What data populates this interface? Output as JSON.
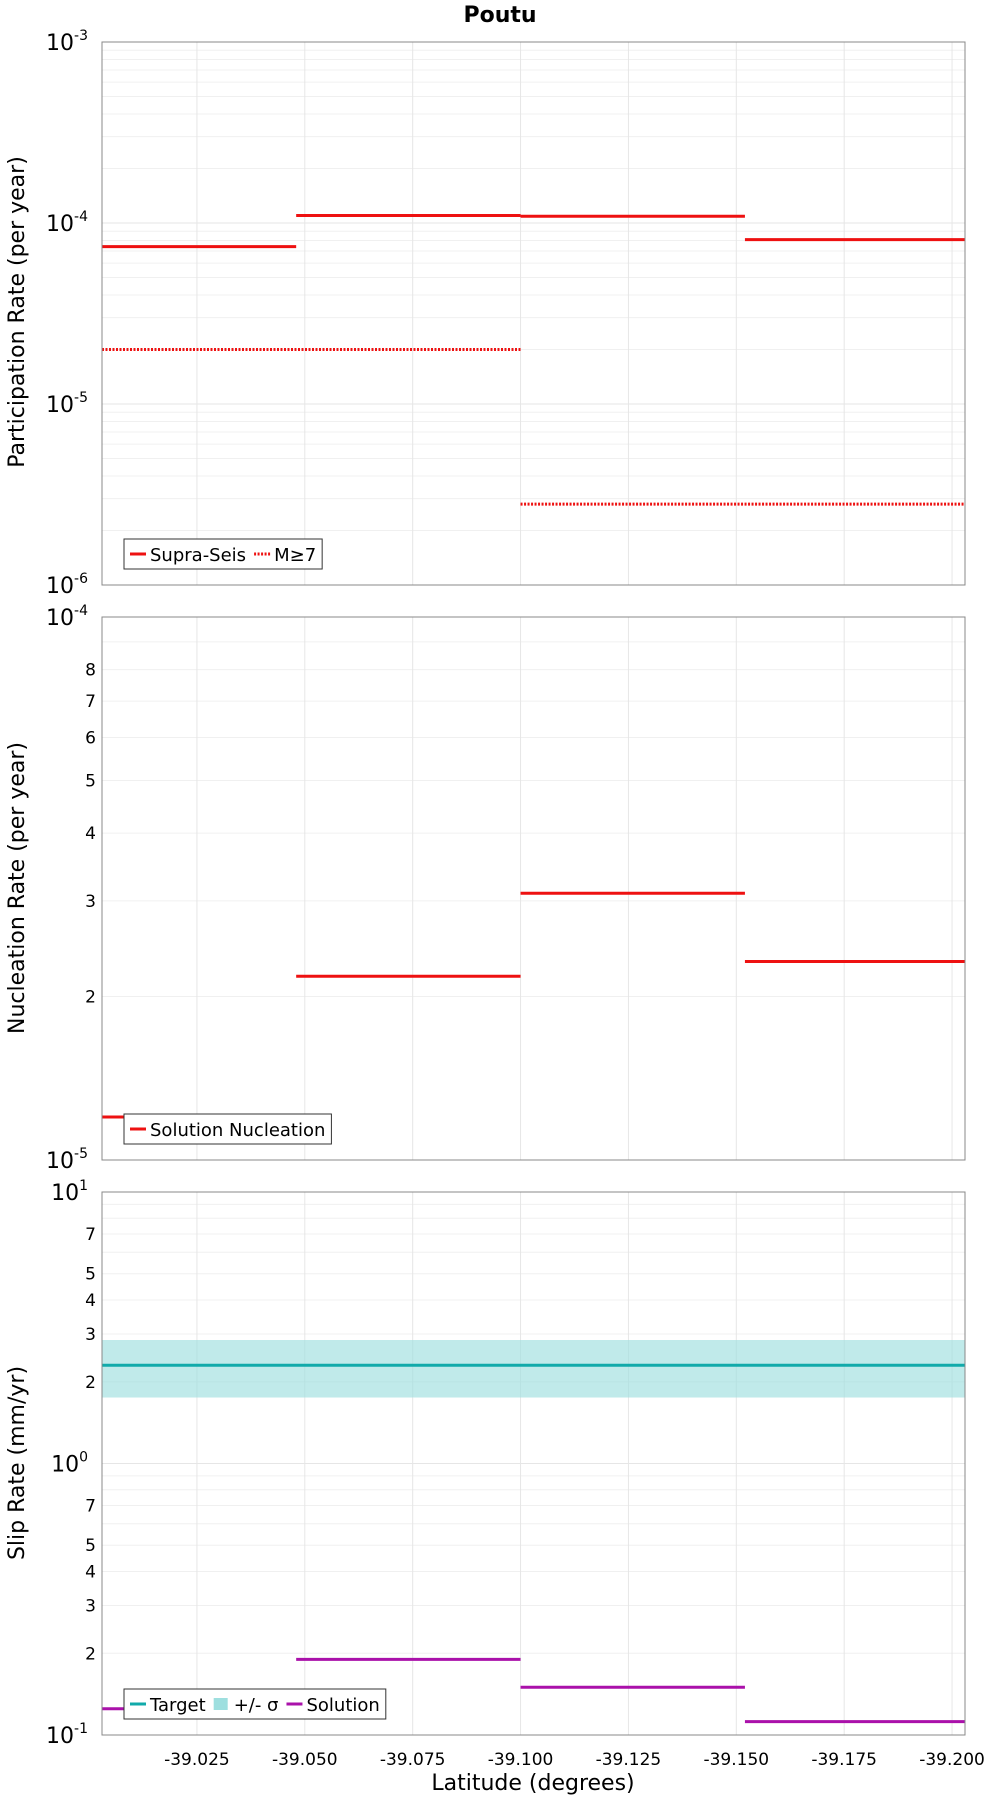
{
  "chart_data": [
    {
      "type": "line",
      "title": "Poutu",
      "ylabel": "Participation Rate (per year)",
      "xlabel": "",
      "yscale": "log",
      "ylim": [
        1e-06,
        0.001
      ],
      "xlim": [
        -39.003,
        -39.203
      ],
      "y_tick_labels": [
        {
          "base": "10",
          "exp": "-3"
        },
        {
          "base": "10",
          "exp": "-4"
        },
        {
          "base": "10",
          "exp": "-5"
        },
        {
          "base": "10",
          "exp": "-6"
        }
      ],
      "series": [
        {
          "name": "Supra-Seis",
          "color": "#ee1111",
          "style": "solid",
          "segments": [
            {
              "x": [
                -39.003,
                -39.048
              ],
              "y": 7.4e-05
            },
            {
              "x": [
                -39.048,
                -39.1
              ],
              "y": 0.00011
            },
            {
              "x": [
                -39.1,
                -39.152
              ],
              "y": 0.000109
            },
            {
              "x": [
                -39.152,
                -39.203
              ],
              "y": 8.1e-05
            }
          ]
        },
        {
          "name": "M≥7",
          "color": "#ee1111",
          "style": "dotted",
          "segments": [
            {
              "x": [
                -39.003,
                -39.1
              ],
              "y": 2e-05
            },
            {
              "x": [
                -39.1,
                -39.203
              ],
              "y": 2.8e-06
            }
          ]
        }
      ],
      "legend": "bottom-left",
      "grid": true
    },
    {
      "type": "line",
      "ylabel": "Nucleation Rate (per year)",
      "xlabel": "",
      "yscale": "log",
      "ylim": [
        1e-05,
        0.0001
      ],
      "xlim": [
        -39.003,
        -39.203
      ],
      "y_tick_labels": [
        {
          "base": "10",
          "exp": "-4"
        },
        {
          "base": "10",
          "exp": "-5"
        }
      ],
      "y_minor_labels": [
        "8",
        "7",
        "6",
        "5",
        "4",
        "3",
        "2"
      ],
      "series": [
        {
          "name": "Solution Nucleation",
          "color": "#ee1111",
          "style": "solid",
          "segments": [
            {
              "x": [
                -39.003,
                -39.048
              ],
              "y": 1.2e-05
            },
            {
              "x": [
                -39.048,
                -39.1
              ],
              "y": 2.18e-05
            },
            {
              "x": [
                -39.1,
                -39.152
              ],
              "y": 3.1e-05
            },
            {
              "x": [
                -39.152,
                -39.203
              ],
              "y": 2.32e-05
            }
          ]
        }
      ],
      "legend": "bottom-left",
      "grid": true
    },
    {
      "type": "line",
      "ylabel": "Slip Rate (mm/yr)",
      "xlabel": "Latitude (degrees)",
      "yscale": "log",
      "ylim": [
        0.1,
        10
      ],
      "xlim": [
        -39.003,
        -39.203
      ],
      "x_tick_labels": [
        "-39.025",
        "-39.050",
        "-39.075",
        "-39.100",
        "-39.125",
        "-39.150",
        "-39.175",
        "-39.200"
      ],
      "y_tick_labels": [
        {
          "base": "10",
          "exp": "1"
        },
        {
          "base": "10",
          "exp": "0"
        },
        {
          "base": "10",
          "exp": "-1"
        }
      ],
      "y_minor_labels": [
        "7",
        "5",
        "4",
        "3",
        "2",
        "7",
        "5",
        "4",
        "3",
        "2"
      ],
      "band": {
        "name": "+/- σ",
        "color": "#9edfdf",
        "lower": 1.75,
        "upper": 2.85
      },
      "series": [
        {
          "name": "Target",
          "color": "#11aaaa",
          "style": "solid",
          "segments": [
            {
              "x": [
                -39.003,
                -39.203
              ],
              "y": 2.3
            }
          ]
        },
        {
          "name": "Solution",
          "color": "#aa11aa",
          "style": "solid",
          "segments": [
            {
              "x": [
                -39.003,
                -39.048
              ],
              "y": 0.125
            },
            {
              "x": [
                -39.048,
                -39.1
              ],
              "y": 0.19
            },
            {
              "x": [
                -39.1,
                -39.152
              ],
              "y": 0.15
            },
            {
              "x": [
                -39.152,
                -39.203
              ],
              "y": 0.112
            }
          ]
        }
      ],
      "legend": "bottom-left",
      "grid": true
    }
  ]
}
